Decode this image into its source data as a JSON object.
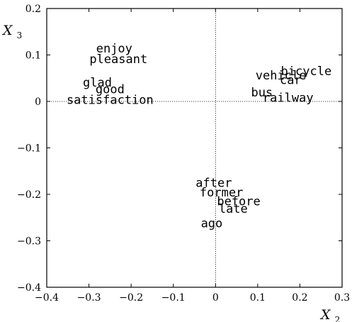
{
  "chart_data": {
    "type": "scatter",
    "xlabel": {
      "base": "X",
      "sub": "2"
    },
    "ylabel": {
      "base": "X",
      "sub": "3"
    },
    "xlim": [
      -0.4,
      0.3
    ],
    "ylim": [
      -0.4,
      0.2
    ],
    "xticks": [
      {
        "value": -0.4,
        "label": "−0.4"
      },
      {
        "value": -0.3,
        "label": "−0.3"
      },
      {
        "value": -0.2,
        "label": "−0.2"
      },
      {
        "value": -0.1,
        "label": "−0.1"
      },
      {
        "value": 0,
        "label": "0"
      },
      {
        "value": 0.1,
        "label": "0.1"
      },
      {
        "value": 0.2,
        "label": "0.2"
      },
      {
        "value": 0.3,
        "label": "0.3"
      }
    ],
    "yticks": [
      {
        "value": 0.2,
        "label": "0.2"
      },
      {
        "value": 0.1,
        "label": "0.1"
      },
      {
        "value": 0,
        "label": "0"
      },
      {
        "value": -0.1,
        "label": "−0.1"
      },
      {
        "value": -0.2,
        "label": "−0.2"
      },
      {
        "value": -0.3,
        "label": "−0.3"
      },
      {
        "value": -0.4,
        "label": "−0.4"
      }
    ],
    "reference_lines": {
      "x": 0,
      "y": 0,
      "style": "dotted"
    },
    "points": [
      {
        "label": "enjoy",
        "x": -0.24,
        "y": 0.113
      },
      {
        "label": "pleasant",
        "x": -0.23,
        "y": 0.09
      },
      {
        "label": "glad",
        "x": -0.28,
        "y": 0.04
      },
      {
        "label": "good",
        "x": -0.25,
        "y": 0.025
      },
      {
        "label": "satisfaction",
        "x": -0.25,
        "y": 0.002
      },
      {
        "label": "bicycle",
        "x": 0.215,
        "y": 0.064
      },
      {
        "label": "vehicle",
        "x": 0.155,
        "y": 0.055
      },
      {
        "label": "car",
        "x": 0.178,
        "y": 0.045
      },
      {
        "label": "bus",
        "x": 0.11,
        "y": 0.018
      },
      {
        "label": "railway",
        "x": 0.172,
        "y": 0.007
      },
      {
        "label": "after",
        "x": -0.004,
        "y": -0.176
      },
      {
        "label": "former",
        "x": 0.014,
        "y": -0.197
      },
      {
        "label": "before",
        "x": 0.055,
        "y": -0.216
      },
      {
        "label": "late",
        "x": 0.042,
        "y": -0.232
      },
      {
        "label": "ago",
        "x": -0.009,
        "y": -0.263
      }
    ]
  }
}
